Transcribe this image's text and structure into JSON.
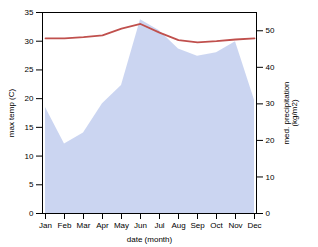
{
  "chart_data": {
    "type": "line",
    "categories": [
      "Jan",
      "Feb",
      "Mar",
      "Apr",
      "May",
      "Jun",
      "Jul",
      "Aug",
      "Sep",
      "Oct",
      "Nov",
      "Dec"
    ],
    "series": [
      {
        "type": "area",
        "axis": "y2",
        "color": "#c5d0f0",
        "values": [
          29,
          19,
          22,
          30,
          35,
          53,
          50,
          45,
          43,
          44,
          47,
          31
        ]
      },
      {
        "type": "line",
        "color": "#c0504d",
        "values": [
          30.5,
          30.5,
          30.7,
          31.0,
          32.2,
          33.0,
          31.5,
          30.2,
          29.8,
          30.0,
          30.3,
          30.5
        ]
      }
    ],
    "xlabel": "date (month)",
    "ylabel": "max temp (C)",
    "y2label": "med. precipitation\n(kg/m2)",
    "ylim": [
      0,
      35
    ],
    "yticks": [
      0,
      5,
      10,
      15,
      20,
      25,
      30,
      35
    ],
    "y2lim": [
      0,
      55
    ],
    "y2ticks": [
      0,
      10,
      20,
      30,
      40,
      50
    ],
    "grid": false
  }
}
